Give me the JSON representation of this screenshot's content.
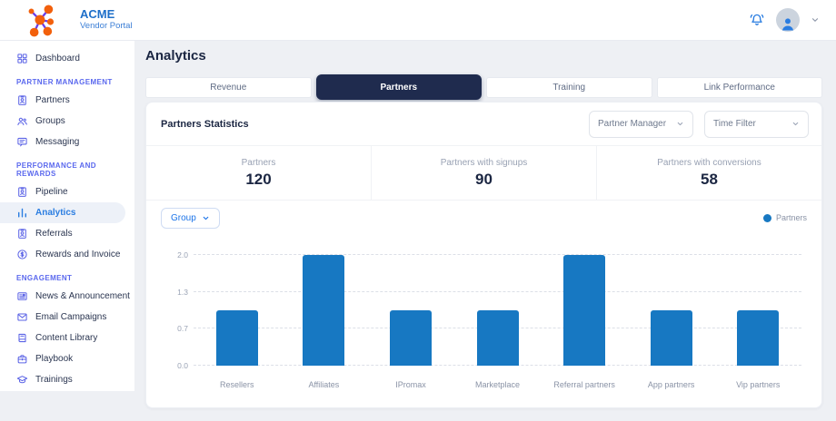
{
  "brand": {
    "name": "ACME",
    "subtitle": "Vendor Portal",
    "logo_icon": "network-logo-icon"
  },
  "header": {
    "icons": [
      "bell-icon",
      "user-avatar-icon",
      "chevron-down-icon"
    ]
  },
  "sidebar": {
    "sections": [
      {
        "title": "",
        "items": [
          {
            "label": "Dashboard",
            "icon": "dashboard-grid-icon"
          }
        ]
      },
      {
        "title": "PARTNER MANAGEMENT",
        "items": [
          {
            "label": "Partners",
            "icon": "id-badge-icon"
          },
          {
            "label": "Groups",
            "icon": "users-icon"
          },
          {
            "label": "Messaging",
            "icon": "chat-icon"
          }
        ]
      },
      {
        "title": "PERFORMANCE AND REWARDS",
        "items": [
          {
            "label": "Pipeline",
            "icon": "id-badge-icon"
          },
          {
            "label": "Analytics",
            "icon": "bar-chart-icon",
            "active": true
          },
          {
            "label": "Referrals",
            "icon": "id-badge-icon"
          },
          {
            "label": "Rewards and Invoice",
            "icon": "dollar-circle-icon"
          }
        ]
      },
      {
        "title": "ENGAGEMENT",
        "items": [
          {
            "label": "News & Announcement",
            "icon": "newspaper-icon"
          },
          {
            "label": "Email Campaigns",
            "icon": "envelope-icon"
          },
          {
            "label": "Content Library",
            "icon": "book-icon"
          },
          {
            "label": "Playbook",
            "icon": "briefcase-icon"
          },
          {
            "label": "Trainings",
            "icon": "graduation-cap-icon"
          }
        ]
      }
    ]
  },
  "main": {
    "title": "Analytics",
    "tabs": [
      {
        "label": "Revenue"
      },
      {
        "label": "Partners",
        "active": true
      },
      {
        "label": "Training"
      },
      {
        "label": "Link Performance"
      }
    ],
    "panel": {
      "title": "Partners Statistics",
      "filters": [
        {
          "label": "Partner Manager"
        },
        {
          "label": "Time Filter"
        }
      ],
      "stats": [
        {
          "label": "Partners",
          "value": "120"
        },
        {
          "label": "Partners with signups",
          "value": "90"
        },
        {
          "label": "Partners with conversions",
          "value": "58"
        }
      ],
      "group_button_label": "Group",
      "legend": [
        {
          "label": "Partners",
          "color": "#1778c2"
        }
      ]
    }
  },
  "chart_data": {
    "type": "bar",
    "categories": [
      "Resellers",
      "Affiliates",
      "IPromax",
      "Marketplace",
      "Referral partners",
      "App partners",
      "Vip partners"
    ],
    "series": [
      {
        "name": "Partners",
        "values": [
          1,
          2,
          1,
          1,
          2,
          1,
          1
        ]
      }
    ],
    "title": "",
    "xlabel": "",
    "ylabel": "",
    "ylim": [
      0,
      2
    ],
    "ytick_labels": [
      "0.0",
      "0.7",
      "1.3",
      "2.0"
    ],
    "ytick_values": [
      0,
      0.6667,
      1.3333,
      2
    ],
    "grid": "horizontal-dashed",
    "legend_position": "top-right",
    "bar_color": "#1778c2"
  },
  "colors": {
    "accent_blue": "#2a7de1",
    "bar_blue": "#1778c2",
    "nav_indigo": "#5b63e6",
    "section_indigo": "#5a68ee",
    "tab_active_bg": "#1f2b4e",
    "page_bg": "#eef0f4",
    "brand_orange": "#f2600c",
    "brand_purple": "#6a3ee8"
  }
}
